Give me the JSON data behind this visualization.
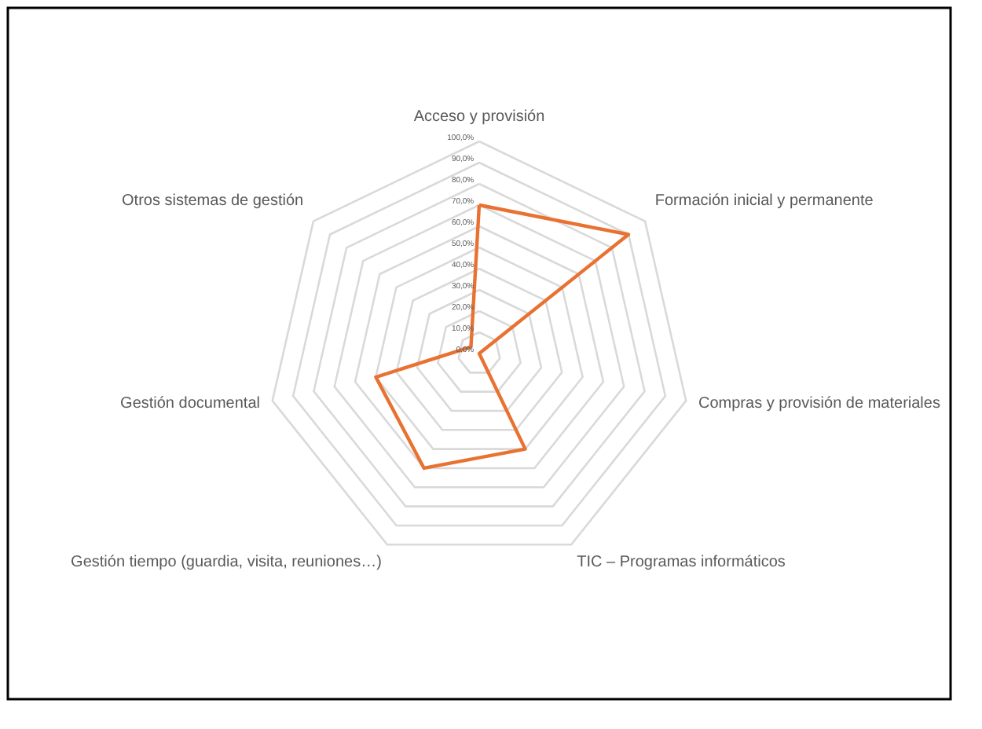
{
  "chart_data": {
    "type": "radar",
    "categories": [
      "Acceso y provisión",
      "Formación inicial y permanente",
      "Compras y provisión de materiales",
      "TIC – Programas informáticos",
      "Gestión tiempo (guardia, visita, reuniones…)",
      "Gestión documental",
      "Otros sistemas de gestión"
    ],
    "series": [
      {
        "color": "#e97132",
        "values": [
          70,
          90,
          0,
          50,
          60,
          50,
          5
        ]
      }
    ],
    "ylim": [
      0,
      100
    ],
    "yticks": [
      {
        "value": 0,
        "label": "0,0%"
      },
      {
        "value": 10,
        "label": "10,0%"
      },
      {
        "value": 20,
        "label": "20,0%"
      },
      {
        "value": 30,
        "label": "30,0%"
      },
      {
        "value": 40,
        "label": "40,0%"
      },
      {
        "value": 50,
        "label": "50,0%"
      },
      {
        "value": 60,
        "label": "60,0%"
      },
      {
        "value": 70,
        "label": "70,0%"
      },
      {
        "value": 80,
        "label": "80,0%"
      },
      {
        "value": 90,
        "label": "90,0%"
      },
      {
        "value": 100,
        "label": "100,0%"
      }
    ],
    "grid": true,
    "marker": "none",
    "line_style": "solid"
  }
}
